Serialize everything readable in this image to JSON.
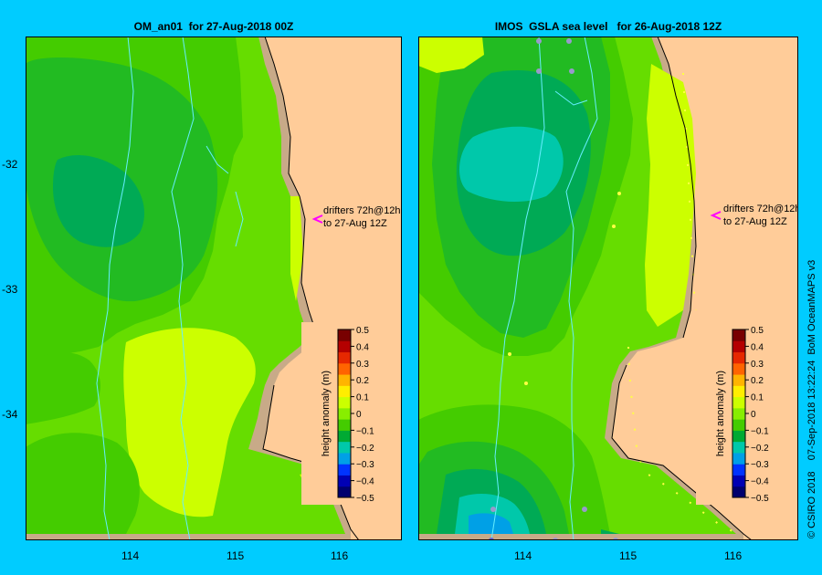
{
  "colors": {
    "background": "#00ccff",
    "land": "#ffcc99",
    "shelf": "#c8aa88",
    "bathymetry": "#66eeff",
    "drifter_arrow": "#ff00ff"
  },
  "panels": {
    "left": {
      "title": "OM_an01  for 27-Aug-2018 00Z"
    },
    "right": {
      "title": "IMOS  GSLA sea level   for 26-Aug-2018 12Z"
    }
  },
  "map_extent": {
    "lon": [
      113.0,
      116.6
    ],
    "lat": [
      -35.0,
      -31.0
    ]
  },
  "axes": {
    "y_ticks": [
      "-32",
      "-33",
      "-34"
    ],
    "x_ticks": [
      "114",
      "115",
      "116"
    ]
  },
  "annotation": {
    "line1": "drifters 72h@12h",
    "line2": "to 27-Aug 12Z"
  },
  "colorbar": {
    "label": "height anomaly (m)",
    "ticks": [
      "0.5",
      "0.4",
      "0.3",
      "0.2",
      "0.1",
      "0",
      "−0.1",
      "−0.2",
      "−0.3",
      "−0.4",
      "−0.5"
    ],
    "colors": [
      "#00006e",
      "#0000b4",
      "#0033ff",
      "#00a0e6",
      "#00c8aa",
      "#00aa33",
      "#44cc00",
      "#88ee00",
      "#ccff00",
      "#ffee00",
      "#ffb400",
      "#ff6400",
      "#e62800",
      "#b40000",
      "#780000"
    ]
  },
  "credit": "© CSIRO 2018    07-Sep-2018 13:22:24  BoM OceanMAPS v3"
}
